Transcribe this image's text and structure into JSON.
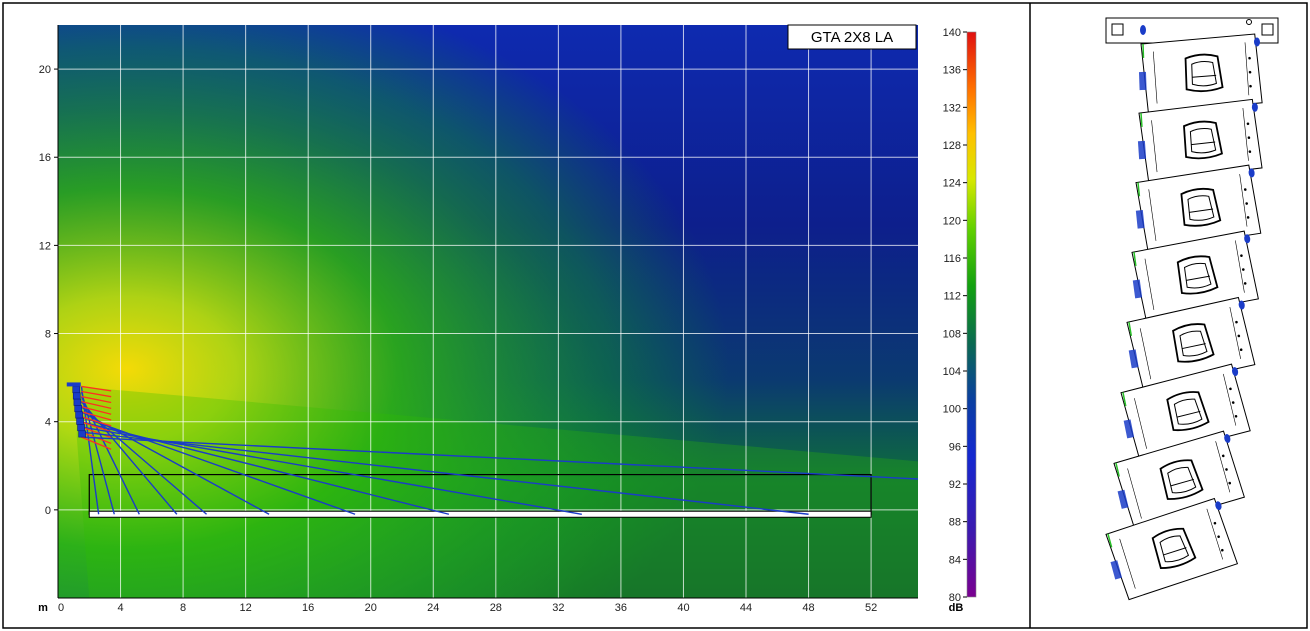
{
  "chart_data": {
    "type": "heatmap",
    "title": "GTA 2X8 LA",
    "xlabel": "m",
    "x_unit": "m",
    "xlim": [
      0,
      55
    ],
    "ylim": [
      -4,
      22
    ],
    "x_ticks": [
      0,
      4,
      8,
      12,
      16,
      20,
      24,
      28,
      32,
      36,
      40,
      44,
      48,
      52
    ],
    "y_ticks": [
      0,
      4,
      8,
      12,
      16,
      20
    ],
    "colorbar": {
      "label": "dB",
      "range": [
        80,
        140
      ],
      "ticks": [
        80,
        84,
        88,
        92,
        96,
        100,
        104,
        108,
        112,
        116,
        120,
        124,
        128,
        132,
        136,
        140
      ]
    },
    "array": {
      "name": "GTA 2X8 LA",
      "elements": 8,
      "top": [
        1.2,
        5.6
      ],
      "bottom": [
        1.2,
        3.3
      ]
    },
    "audience_plane": {
      "x_start": 2,
      "x_end": 52,
      "y_floor": -0.2,
      "y_listening": 1.6
    },
    "ray_hits_x": [
      2.6,
      3.6,
      5.2,
      7.6,
      9.5,
      13.5,
      19.0,
      25.0,
      33.5,
      48.0,
      55.0
    ],
    "colors": {
      "low": "#0a1e9a",
      "mid": "#18b000",
      "high": "#ffe000",
      "ray": "#1a3cc8",
      "axis": "#000000"
    }
  },
  "side_panel": {
    "cabinets": 8,
    "label": "array-elevation-drawing"
  }
}
